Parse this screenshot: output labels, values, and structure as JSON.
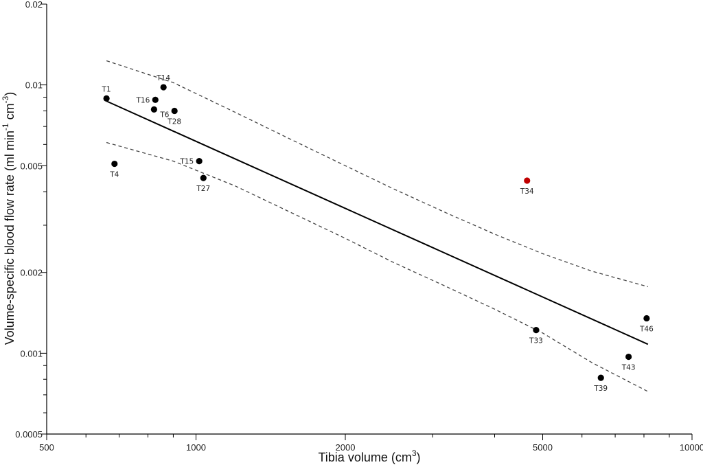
{
  "chart_data": {
    "type": "scatter",
    "xscale": "log",
    "yscale": "log",
    "xlim": [
      500,
      10000
    ],
    "ylim": [
      0.0005,
      0.02
    ],
    "xticks_labeled": [
      {
        "value": 500,
        "label": "500"
      },
      {
        "value": 1000,
        "label": "1000"
      },
      {
        "value": 2000,
        "label": "2000"
      },
      {
        "value": 5000,
        "label": "5000"
      },
      {
        "value": 10000,
        "label": "10000"
      }
    ],
    "yticks_labeled": [
      {
        "value": 0.0005,
        "label": "0.0005"
      },
      {
        "value": 0.001,
        "label": "0.001"
      },
      {
        "value": 0.002,
        "label": "0.002"
      },
      {
        "value": 0.005,
        "label": "0.005"
      },
      {
        "value": 0.01,
        "label": "0.01"
      },
      {
        "value": 0.02,
        "label": "0.02"
      }
    ],
    "xlabel": {
      "main": "Tibia volume  (cm",
      "sup": "3",
      "tail": ")"
    },
    "ylabel": {
      "main": "Volume-specific blood flow rate  (ml min",
      "sup1": "-1",
      "mid": " cm",
      "sup2": "-3",
      "tail": ")"
    },
    "grid": false,
    "points": [
      {
        "label": "T1",
        "x": 660,
        "y": 0.0089,
        "color": "#000000",
        "label_pos": "above"
      },
      {
        "label": "T4",
        "x": 685,
        "y": 0.00508,
        "color": "#000000",
        "label_pos": "below"
      },
      {
        "label": "T14",
        "x": 860,
        "y": 0.0098,
        "color": "#000000",
        "label_pos": "above"
      },
      {
        "label": "T16",
        "x": 828,
        "y": 0.0088,
        "color": "#000000",
        "label_pos": "left"
      },
      {
        "label": "T6",
        "x": 823,
        "y": 0.0081,
        "color": "#000000",
        "label_pos": "below-right"
      },
      {
        "label": "T28",
        "x": 905,
        "y": 0.008,
        "color": "#000000",
        "label_pos": "below"
      },
      {
        "label": "T15",
        "x": 1015,
        "y": 0.0052,
        "color": "#000000",
        "label_pos": "left"
      },
      {
        "label": "T27",
        "x": 1035,
        "y": 0.0045,
        "color": "#000000",
        "label_pos": "below"
      },
      {
        "label": "T34",
        "x": 4650,
        "y": 0.0044,
        "color": "#c00000",
        "label_pos": "below"
      },
      {
        "label": "T33",
        "x": 4850,
        "y": 0.00122,
        "color": "#000000",
        "label_pos": "below"
      },
      {
        "label": "T46",
        "x": 8100,
        "y": 0.00135,
        "color": "#000000",
        "label_pos": "below"
      },
      {
        "label": "T43",
        "x": 7450,
        "y": 0.00097,
        "color": "#000000",
        "label_pos": "below"
      },
      {
        "label": "T39",
        "x": 6550,
        "y": 0.00081,
        "color": "#000000",
        "label_pos": "below"
      }
    ],
    "regression_line": {
      "x": [
        660,
        8150
      ],
      "y": [
        0.0087,
        0.00108
      ],
      "style": "solid",
      "color": "#000000"
    },
    "confidence_upper": {
      "x": [
        660,
        900,
        1200,
        1600,
        2000,
        2500,
        3200,
        4000,
        5000,
        6300,
        8150
      ],
      "y": [
        0.0123,
        0.0102,
        0.0079,
        0.0061,
        0.005,
        0.0041,
        0.00333,
        0.00278,
        0.00235,
        0.00202,
        0.00177
      ],
      "style": "dashed",
      "color": "#444444"
    },
    "confidence_lower": {
      "x": [
        660,
        900,
        1200,
        1600,
        2000,
        2500,
        3200,
        4000,
        5000,
        6300,
        8150
      ],
      "y": [
        0.0061,
        0.0052,
        0.0042,
        0.00326,
        0.00268,
        0.00218,
        0.00177,
        0.00146,
        0.00119,
        0.00092,
        0.00072
      ],
      "style": "dashed",
      "color": "#444444"
    }
  }
}
